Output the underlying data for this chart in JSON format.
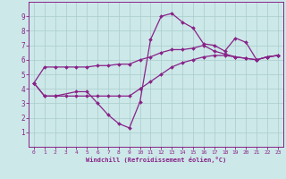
{
  "bg_color": "#cce8e8",
  "grid_color": "#aacccc",
  "line_color": "#882288",
  "xlabel": "Windchill (Refroidissement éolien,°C)",
  "xlim": [
    -0.5,
    23.5
  ],
  "ylim": [
    0,
    10
  ],
  "xticks": [
    0,
    1,
    2,
    3,
    4,
    5,
    6,
    7,
    8,
    9,
    10,
    11,
    12,
    13,
    14,
    15,
    16,
    17,
    18,
    19,
    20,
    21,
    22,
    23
  ],
  "yticks": [
    1,
    2,
    3,
    4,
    5,
    6,
    7,
    8,
    9
  ],
  "line1_x": [
    0,
    1,
    2,
    4,
    5,
    6,
    7,
    8,
    9,
    10,
    11,
    12,
    13,
    14,
    15,
    16,
    17,
    18,
    19,
    20,
    21,
    22,
    23
  ],
  "line1_y": [
    4.4,
    3.5,
    3.5,
    3.8,
    3.8,
    3.0,
    2.2,
    1.6,
    1.3,
    3.1,
    7.4,
    9.0,
    9.2,
    8.6,
    8.2,
    7.1,
    7.0,
    6.6,
    7.5,
    7.2,
    6.0,
    6.2,
    6.3
  ],
  "line2_x": [
    0,
    1,
    2,
    3,
    4,
    5,
    6,
    7,
    8,
    9,
    10,
    11,
    12,
    13,
    14,
    15,
    16,
    17,
    18,
    19,
    20,
    21,
    22,
    23
  ],
  "line2_y": [
    4.4,
    5.5,
    5.5,
    5.5,
    5.5,
    5.5,
    5.6,
    5.6,
    5.7,
    5.7,
    6.0,
    6.2,
    6.5,
    6.7,
    6.7,
    6.8,
    7.0,
    6.6,
    6.4,
    6.2,
    6.1,
    6.0,
    6.2,
    6.3
  ],
  "line3_x": [
    0,
    1,
    2,
    3,
    4,
    5,
    6,
    7,
    8,
    9,
    10,
    11,
    12,
    13,
    14,
    15,
    16,
    17,
    18,
    19,
    20,
    21,
    22,
    23
  ],
  "line3_y": [
    4.4,
    3.5,
    3.5,
    3.5,
    3.5,
    3.5,
    3.5,
    3.5,
    3.5,
    3.5,
    4.0,
    4.5,
    5.0,
    5.5,
    5.8,
    6.0,
    6.2,
    6.3,
    6.3,
    6.2,
    6.1,
    6.0,
    6.2,
    6.3
  ]
}
